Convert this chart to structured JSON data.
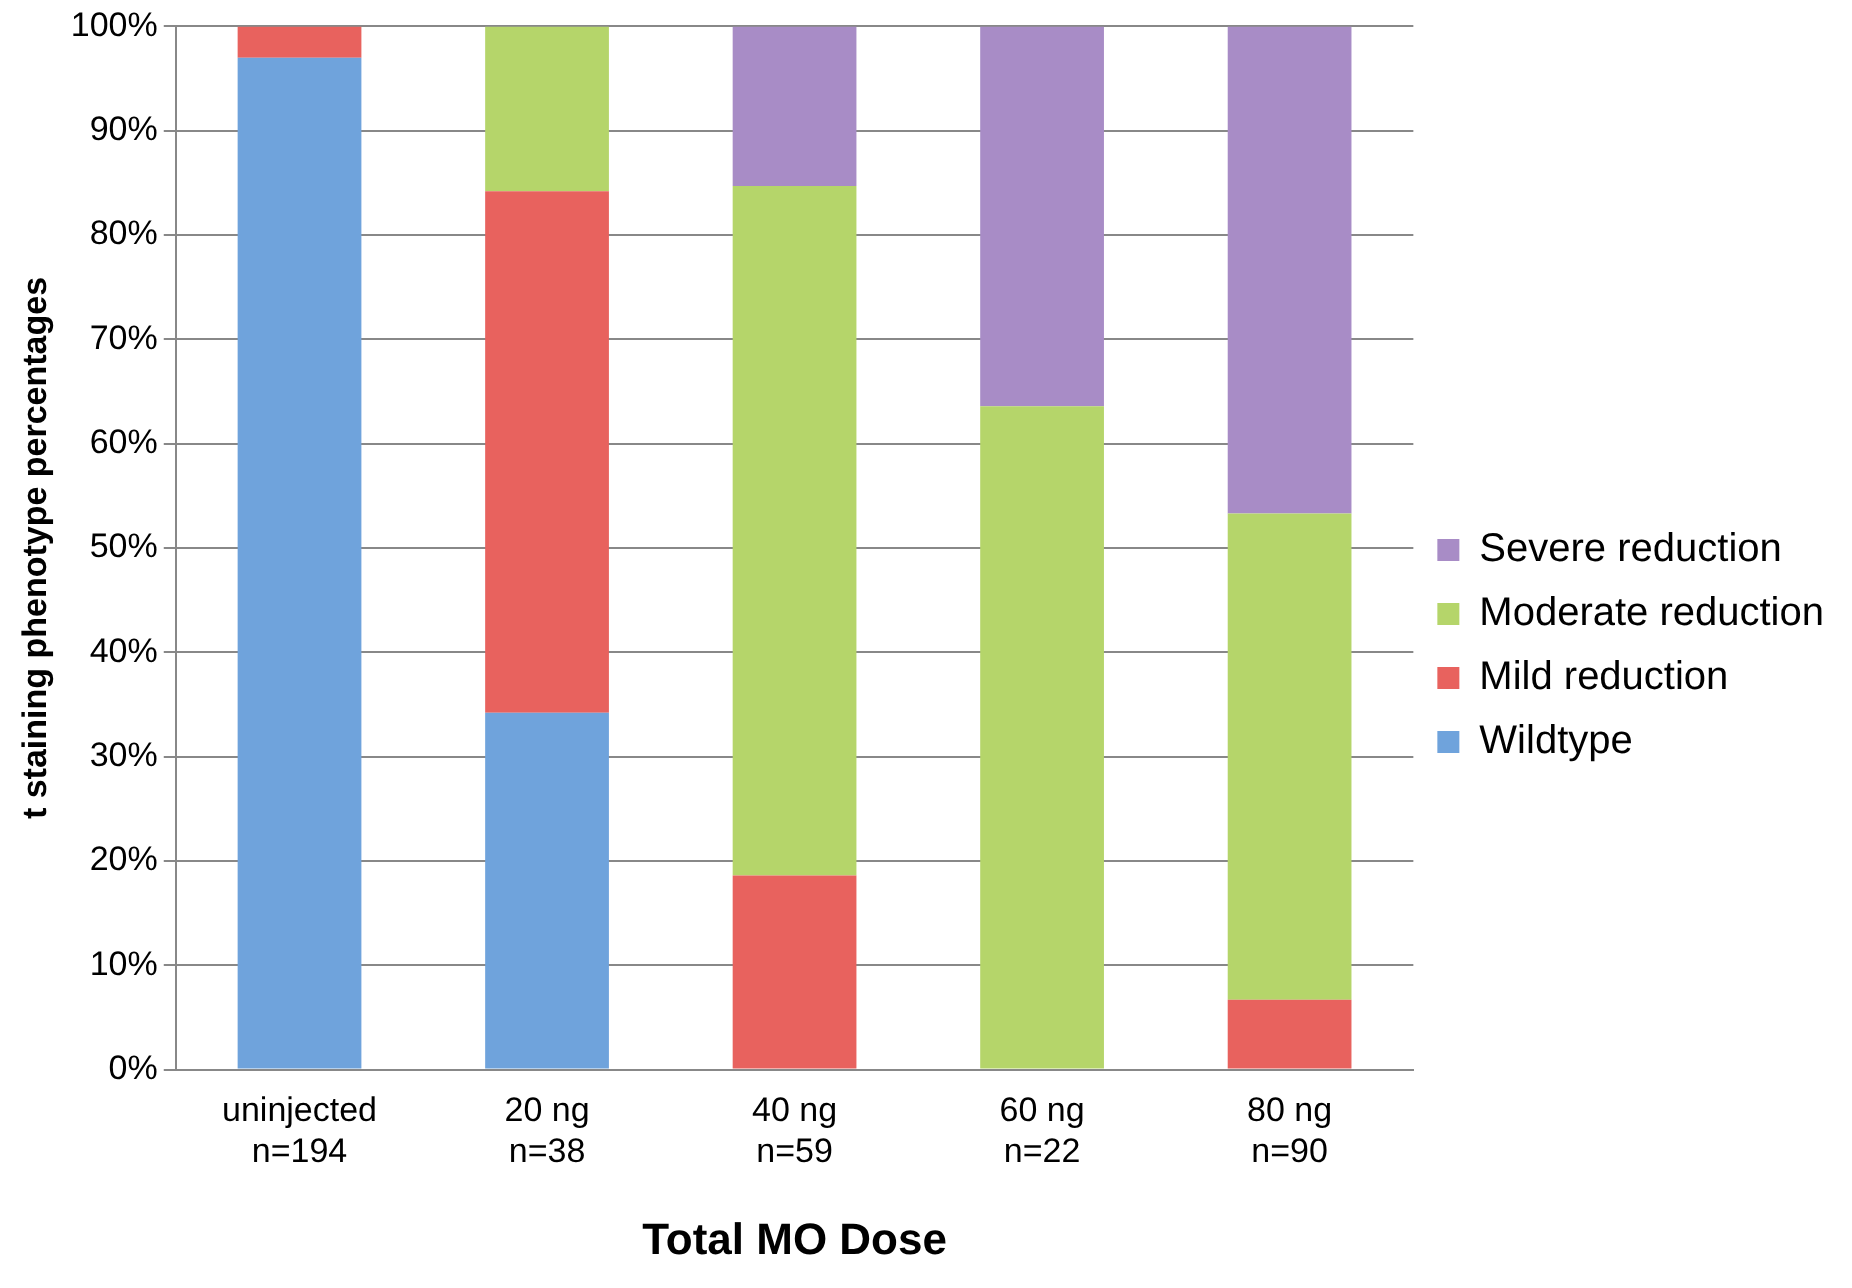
{
  "chart_data": {
    "type": "bar",
    "stacked": true,
    "xlabel": "Total MO Dose",
    "ylabel": "t staining phenotype percentages",
    "categories": [
      "uninjected\nn=194",
      "20 ng\nn=38",
      "40 ng\nn=59",
      "60 ng\nn=22",
      "80 ng\nn=90"
    ],
    "series": [
      {
        "name": "Wildtype",
        "color": "#6fa3dc",
        "values": [
          97,
          34.2,
          0,
          0,
          0
        ]
      },
      {
        "name": "Mild reduction",
        "color": "#e8625e",
        "values": [
          3,
          50,
          18.6,
          0,
          6.7
        ]
      },
      {
        "name": "Moderate reduction",
        "color": "#b5d56a",
        "values": [
          0,
          15.8,
          66.1,
          63.6,
          46.6
        ]
      },
      {
        "name": "Severe reduction",
        "color": "#a88cc6",
        "values": [
          0,
          0,
          15.3,
          36.4,
          46.7
        ]
      }
    ],
    "ylim": [
      0,
      100
    ],
    "yticks": [
      {
        "value": 0,
        "label": "0%"
      },
      {
        "value": 10,
        "label": "10%"
      },
      {
        "value": 20,
        "label": "20%"
      },
      {
        "value": 30,
        "label": "30%"
      },
      {
        "value": 40,
        "label": "40%"
      },
      {
        "value": 50,
        "label": "50%"
      },
      {
        "value": 60,
        "label": "60%"
      },
      {
        "value": 70,
        "label": "70%"
      },
      {
        "value": 80,
        "label": "80%"
      },
      {
        "value": 90,
        "label": "90%"
      },
      {
        "value": 100,
        "label": "100%"
      }
    ],
    "grid": "y",
    "legend": "right"
  }
}
